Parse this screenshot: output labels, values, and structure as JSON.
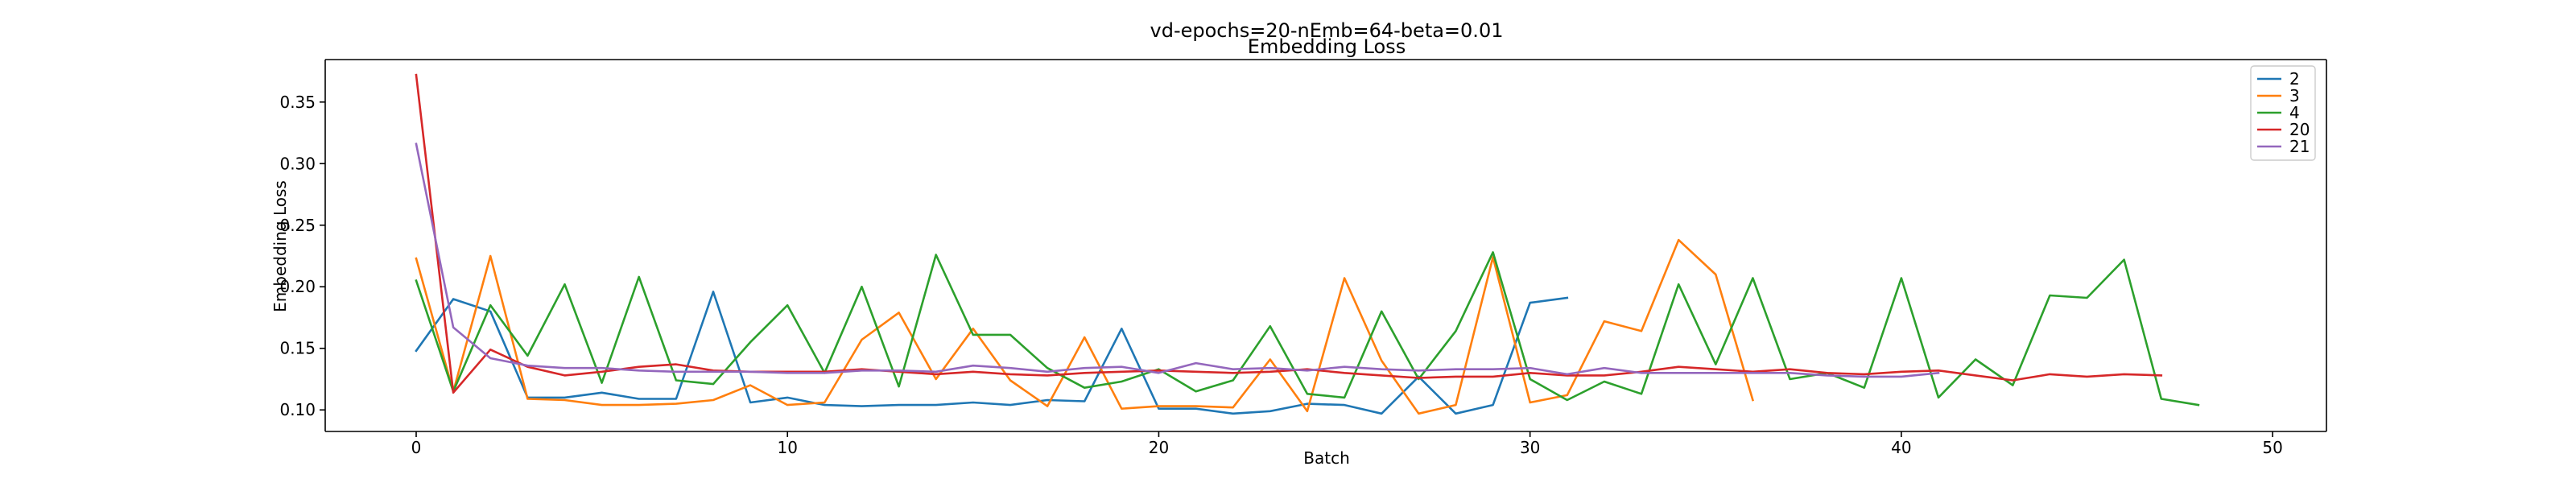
{
  "colors": {
    "background": "#ffffff",
    "axis": "#000000",
    "series_2": "#1f77b4",
    "series_3": "#ff7f0e",
    "series_4": "#2ca02c",
    "series_20": "#d62728",
    "series_21": "#9467bd"
  },
  "chart_data": {
    "type": "line",
    "title": "vd-epochs=20-nEmb=64-beta=0.01",
    "subtitle": "Embedding Loss",
    "xlabel": "Batch",
    "ylabel": "Embedding Loss",
    "xlim": [
      -2.45,
      51.45
    ],
    "ylim": [
      0.0825,
      0.3845
    ],
    "xticks": [
      0,
      10,
      20,
      30,
      40,
      50
    ],
    "yticks": [
      0.1,
      0.15,
      0.2,
      0.25,
      0.3,
      0.35
    ],
    "ytick_labels": [
      "0.10",
      "0.15",
      "0.20",
      "0.25",
      "0.30",
      "0.35"
    ],
    "grid": false,
    "legend_position": "top-right",
    "series": [
      {
        "name": "2",
        "color": "#1f77b4",
        "values": [
          0.148,
          0.19,
          0.18,
          0.11,
          0.11,
          0.114,
          0.109,
          0.109,
          0.196,
          0.106,
          0.11,
          0.104,
          0.103,
          0.104,
          0.104,
          0.106,
          0.104,
          0.108,
          0.107,
          0.166,
          0.101,
          0.101,
          0.097,
          0.099,
          0.105,
          0.104,
          0.097,
          0.127,
          0.097,
          0.104,
          0.187,
          0.191
        ]
      },
      {
        "name": "3",
        "color": "#ff7f0e",
        "values": [
          0.223,
          0.115,
          0.225,
          0.109,
          0.108,
          0.104,
          0.104,
          0.105,
          0.108,
          0.12,
          0.104,
          0.106,
          0.157,
          0.179,
          0.125,
          0.166,
          0.124,
          0.103,
          0.159,
          0.101,
          0.103,
          0.103,
          0.102,
          0.141,
          0.099,
          0.207,
          0.14,
          0.097,
          0.104,
          0.224,
          0.106,
          0.112,
          0.172,
          0.164,
          0.238,
          0.21,
          0.108
        ]
      },
      {
        "name": "4",
        "color": "#2ca02c",
        "values": [
          0.205,
          0.115,
          0.185,
          0.144,
          0.202,
          0.122,
          0.208,
          0.124,
          0.121,
          0.155,
          0.185,
          0.13,
          0.2,
          0.119,
          0.226,
          0.161,
          0.161,
          0.134,
          0.118,
          0.123,
          0.133,
          0.115,
          0.124,
          0.168,
          0.113,
          0.11,
          0.18,
          0.125,
          0.164,
          0.228,
          0.125,
          0.108,
          0.123,
          0.113,
          0.202,
          0.137,
          0.207,
          0.125,
          0.13,
          0.118,
          0.207,
          0.11,
          0.141,
          0.12,
          0.193,
          0.191,
          0.222,
          0.109,
          0.104
        ]
      },
      {
        "name": "20",
        "color": "#d62728",
        "values": [
          0.372,
          0.114,
          0.149,
          0.135,
          0.128,
          0.131,
          0.135,
          0.137,
          0.132,
          0.131,
          0.131,
          0.131,
          0.133,
          0.131,
          0.129,
          0.131,
          0.129,
          0.128,
          0.13,
          0.131,
          0.132,
          0.131,
          0.13,
          0.131,
          0.133,
          0.13,
          0.128,
          0.126,
          0.127,
          0.127,
          0.13,
          0.128,
          0.128,
          0.131,
          0.135,
          0.133,
          0.131,
          0.133,
          0.13,
          0.129,
          0.131,
          0.132,
          0.128,
          0.124,
          0.129,
          0.127,
          0.129,
          0.128
        ]
      },
      {
        "name": "21",
        "color": "#9467bd",
        "values": [
          0.316,
          0.167,
          0.142,
          0.136,
          0.134,
          0.134,
          0.132,
          0.131,
          0.131,
          0.131,
          0.13,
          0.13,
          0.132,
          0.132,
          0.131,
          0.136,
          0.134,
          0.131,
          0.134,
          0.135,
          0.13,
          0.138,
          0.133,
          0.134,
          0.132,
          0.135,
          0.133,
          0.132,
          0.133,
          0.133,
          0.134,
          0.129,
          0.134,
          0.13,
          0.13,
          0.13,
          0.13,
          0.13,
          0.128,
          0.127,
          0.127,
          0.13
        ]
      }
    ]
  }
}
